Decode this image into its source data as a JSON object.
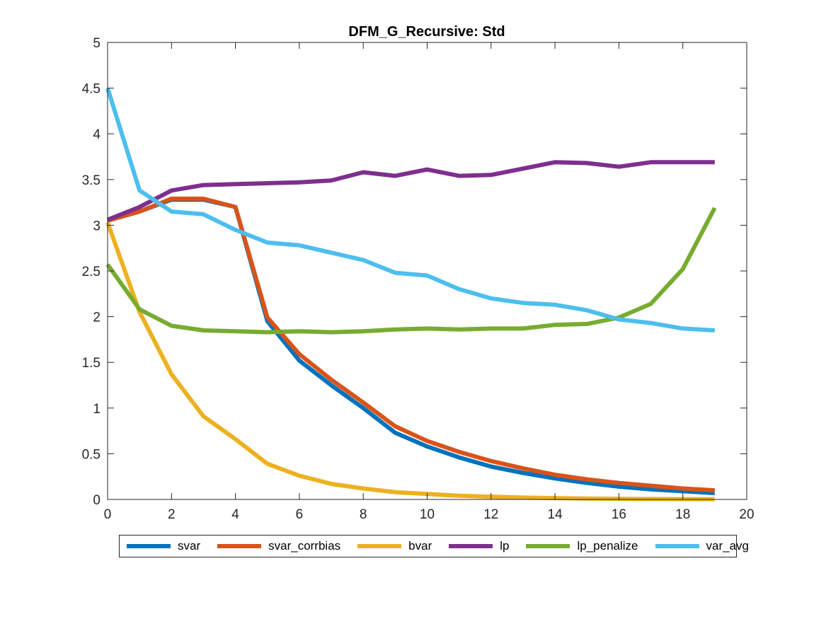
{
  "chart_data": {
    "type": "line",
    "title": "DFM_G_Recursive: Std",
    "xlabel": "",
    "ylabel": "",
    "xlim": [
      0,
      20
    ],
    "ylim": [
      0,
      5
    ],
    "xticks": [
      0,
      2,
      4,
      6,
      8,
      10,
      12,
      14,
      16,
      18,
      20
    ],
    "yticks": [
      0,
      0.5,
      1,
      1.5,
      2,
      2.5,
      3,
      3.5,
      4,
      4.5,
      5
    ],
    "xtick_labels": [
      "0",
      "2",
      "4",
      "6",
      "8",
      "10",
      "12",
      "14",
      "16",
      "18",
      "20"
    ],
    "ytick_labels": [
      "0",
      "0.5",
      "1",
      "1.5",
      "2",
      "2.5",
      "3",
      "3.5",
      "4",
      "4.5",
      "5"
    ],
    "grid": false,
    "legend_position": "bottom-outside",
    "x": [
      0,
      1,
      2,
      3,
      4,
      5,
      6,
      7,
      8,
      9,
      10,
      11,
      12,
      13,
      14,
      15,
      16,
      17,
      18,
      19
    ],
    "series": [
      {
        "name": "svar",
        "color": "#0072BD",
        "values": [
          3.05,
          3.15,
          3.28,
          3.28,
          3.2,
          1.95,
          1.52,
          1.25,
          1.0,
          0.73,
          0.58,
          0.46,
          0.36,
          0.29,
          0.23,
          0.18,
          0.14,
          0.11,
          0.09,
          0.07
        ]
      },
      {
        "name": "svar_corrbias",
        "color": "#D95319",
        "values": [
          3.05,
          3.15,
          3.29,
          3.29,
          3.2,
          1.99,
          1.59,
          1.31,
          1.06,
          0.8,
          0.64,
          0.52,
          0.42,
          0.34,
          0.27,
          0.22,
          0.18,
          0.15,
          0.12,
          0.1
        ]
      },
      {
        "name": "bvar",
        "color": "#EDB120",
        "values": [
          3.03,
          2.05,
          1.37,
          0.91,
          0.66,
          0.39,
          0.26,
          0.17,
          0.12,
          0.08,
          0.06,
          0.04,
          0.03,
          0.02,
          0.015,
          0.01,
          0.007,
          0.005,
          0.004,
          0.003
        ]
      },
      {
        "name": "lp",
        "color": "#7E2F8E",
        "values": [
          3.06,
          3.2,
          3.38,
          3.44,
          3.45,
          3.46,
          3.47,
          3.49,
          3.58,
          3.54,
          3.61,
          3.54,
          3.55,
          3.62,
          3.69,
          3.68,
          3.64,
          3.69,
          3.69,
          3.69
        ]
      },
      {
        "name": "lp_penalize",
        "color": "#77AC30",
        "values": [
          2.57,
          2.08,
          1.9,
          1.85,
          1.84,
          1.83,
          1.84,
          1.83,
          1.84,
          1.86,
          1.87,
          1.86,
          1.87,
          1.87,
          1.91,
          1.92,
          1.99,
          2.14,
          2.52,
          3.19
        ]
      },
      {
        "name": "var_avg",
        "color": "#4DBEEE",
        "values": [
          4.5,
          3.38,
          3.15,
          3.12,
          2.95,
          2.81,
          2.78,
          2.7,
          2.62,
          2.48,
          2.45,
          2.3,
          2.2,
          2.15,
          2.13,
          2.07,
          1.97,
          1.93,
          1.87,
          1.85
        ]
      }
    ]
  }
}
